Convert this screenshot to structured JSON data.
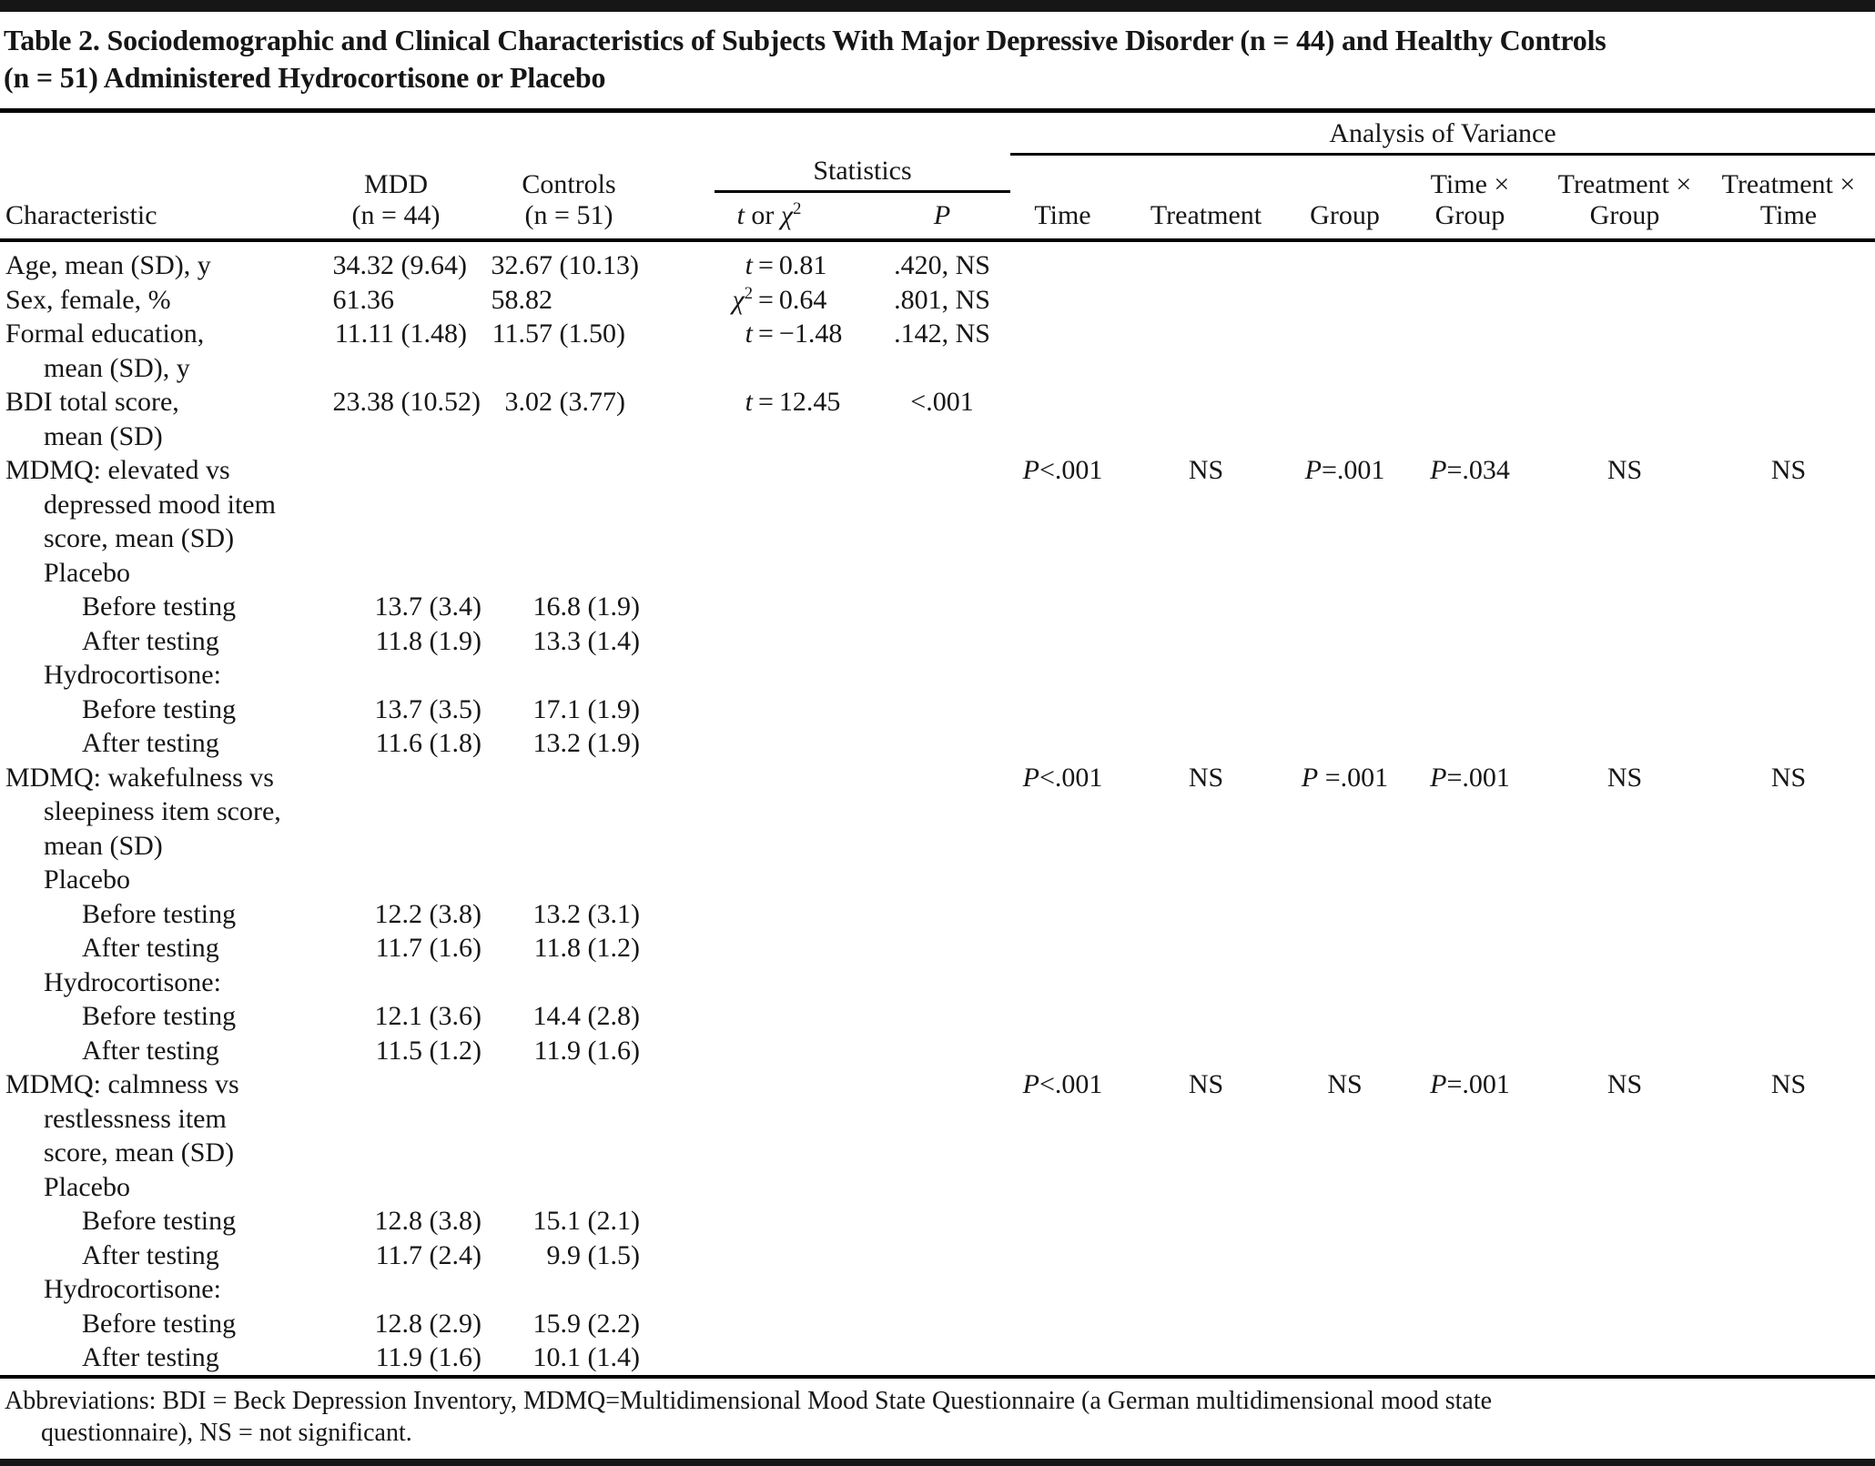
{
  "title": {
    "line1": "Table 2. Sociodemographic and Clinical Characteristics of Subjects With Major Depressive Disorder (n = 44) and Healthy Controls",
    "line2": "(n = 51) Administered  Hydrocortisone or Placebo"
  },
  "header": {
    "characteristic": "Characteristic",
    "mdd": {
      "line1": "MDD",
      "line2": "(n = 44)"
    },
    "controls": {
      "line1": "Controls",
      "line2": "(n = 51)"
    },
    "statistics_group": "Statistics",
    "anova_group": "Analysis of Variance",
    "stat_col": {
      "sym1": "t",
      "mid": " or ",
      "sym2": "χ",
      "sup": "2"
    },
    "p_col": "P",
    "anova_cols": [
      {
        "line1": "Time",
        "line2": ""
      },
      {
        "line1": "Treatment",
        "line2": ""
      },
      {
        "line1": "Group",
        "line2": ""
      },
      {
        "line1": "Time ×",
        "line2": "Group"
      },
      {
        "line1": "Treatment ×",
        "line2": "Group"
      },
      {
        "line1": "Treatment ×",
        "line2": "Time"
      }
    ]
  },
  "table": {
    "rows": [
      {
        "lines": [
          "Age, mean (SD), y"
        ],
        "indent": 0,
        "mdd": {
          "mean": "34.32",
          "sd": "(9.64)"
        },
        "controls": {
          "mean": "32.67",
          "sd": "(10.13)"
        },
        "stat": {
          "symbol": "t",
          "value": "0.81"
        },
        "p": ".420, NS",
        "anova": null
      },
      {
        "lines": [
          "Sex, female, %"
        ],
        "indent": 0,
        "mdd": {
          "mean": "61.36",
          "sd": ""
        },
        "controls": {
          "mean": "58.82",
          "sd": ""
        },
        "stat": {
          "symbol": "chi2",
          "value": "0.64"
        },
        "p": ".801, NS",
        "anova": null
      },
      {
        "lines": [
          "Formal education,",
          "mean (SD), y"
        ],
        "indent": 0,
        "mdd": {
          "mean": "11.11",
          "sd": "(1.48)"
        },
        "controls": {
          "mean": "11.57",
          "sd": "(1.50)"
        },
        "stat": {
          "symbol": "t",
          "value": "−1.48"
        },
        "p": ".142, NS",
        "anova": null
      },
      {
        "lines": [
          "BDI total score,",
          "mean (SD)"
        ],
        "indent": 0,
        "mdd": {
          "mean": "23.38",
          "sd": "(10.52)"
        },
        "controls": {
          "mean": "3.02",
          "sd": "(3.77)"
        },
        "stat": {
          "symbol": "t",
          "value": "12.45"
        },
        "p": "<.001",
        "anova": null
      },
      {
        "lines": [
          "MDMQ: elevated vs",
          "depressed mood item",
          "score, mean (SD)"
        ],
        "indent": 0,
        "mdd": null,
        "controls": null,
        "stat": null,
        "p": "",
        "anova": [
          "P<.001",
          "NS",
          "P=.001",
          "P=.034",
          "NS",
          "NS"
        ]
      },
      {
        "lines": [
          "Placebo"
        ],
        "indent": 1,
        "mdd": null,
        "controls": null,
        "stat": null,
        "p": "",
        "anova": null
      },
      {
        "lines": [
          "Before testing"
        ],
        "indent": 2,
        "mdd": {
          "mean": "13.7",
          "sd": "(3.4)"
        },
        "controls": {
          "mean": "16.8",
          "sd": "(1.9)"
        },
        "stat": null,
        "p": "",
        "anova": null
      },
      {
        "lines": [
          "After testing"
        ],
        "indent": 2,
        "mdd": {
          "mean": "11.8",
          "sd": "(1.9)"
        },
        "controls": {
          "mean": "13.3",
          "sd": "(1.4)"
        },
        "stat": null,
        "p": "",
        "anova": null
      },
      {
        "lines": [
          "Hydrocortisone:"
        ],
        "indent": 1,
        "mdd": null,
        "controls": null,
        "stat": null,
        "p": "",
        "anova": null
      },
      {
        "lines": [
          "Before testing"
        ],
        "indent": 2,
        "mdd": {
          "mean": "13.7",
          "sd": "(3.5)"
        },
        "controls": {
          "mean": "17.1",
          "sd": "(1.9)"
        },
        "stat": null,
        "p": "",
        "anova": null
      },
      {
        "lines": [
          "After testing"
        ],
        "indent": 2,
        "mdd": {
          "mean": "11.6",
          "sd": "(1.8)"
        },
        "controls": {
          "mean": "13.2",
          "sd": "(1.9)"
        },
        "stat": null,
        "p": "",
        "anova": null
      },
      {
        "lines": [
          "MDMQ: wakefulness vs",
          "sleepiness item score,",
          "mean (SD)"
        ],
        "indent": 0,
        "mdd": null,
        "controls": null,
        "stat": null,
        "p": "",
        "anova": [
          "P<.001",
          "NS",
          "P =.001",
          "P=.001",
          "NS",
          "NS"
        ]
      },
      {
        "lines": [
          "Placebo"
        ],
        "indent": 1,
        "mdd": null,
        "controls": null,
        "stat": null,
        "p": "",
        "anova": null
      },
      {
        "lines": [
          "Before testing"
        ],
        "indent": 2,
        "mdd": {
          "mean": "12.2",
          "sd": "(3.8)"
        },
        "controls": {
          "mean": "13.2",
          "sd": "(3.1)"
        },
        "stat": null,
        "p": "",
        "anova": null
      },
      {
        "lines": [
          "After testing"
        ],
        "indent": 2,
        "mdd": {
          "mean": "11.7",
          "sd": "(1.6)"
        },
        "controls": {
          "mean": "11.8",
          "sd": "(1.2)"
        },
        "stat": null,
        "p": "",
        "anova": null
      },
      {
        "lines": [
          "Hydrocortisone:"
        ],
        "indent": 1,
        "mdd": null,
        "controls": null,
        "stat": null,
        "p": "",
        "anova": null
      },
      {
        "lines": [
          "Before testing"
        ],
        "indent": 2,
        "mdd": {
          "mean": "12.1",
          "sd": "(3.6)"
        },
        "controls": {
          "mean": "14.4",
          "sd": "(2.8)"
        },
        "stat": null,
        "p": "",
        "anova": null
      },
      {
        "lines": [
          "After testing"
        ],
        "indent": 2,
        "mdd": {
          "mean": "11.5",
          "sd": "(1.2)"
        },
        "controls": {
          "mean": "11.9",
          "sd": "(1.6)"
        },
        "stat": null,
        "p": "",
        "anova": null
      },
      {
        "lines": [
          "MDMQ: calmness vs",
          "restlessness item",
          "score, mean (SD)"
        ],
        "indent": 0,
        "mdd": null,
        "controls": null,
        "stat": null,
        "p": "",
        "anova": [
          "P<.001",
          "NS",
          "NS",
          "P=.001",
          "NS",
          "NS"
        ]
      },
      {
        "lines": [
          "Placebo"
        ],
        "indent": 1,
        "mdd": null,
        "controls": null,
        "stat": null,
        "p": "",
        "anova": null
      },
      {
        "lines": [
          "Before testing"
        ],
        "indent": 2,
        "mdd": {
          "mean": "12.8",
          "sd": "(3.8)"
        },
        "controls": {
          "mean": "15.1",
          "sd": "(2.1)"
        },
        "stat": null,
        "p": "",
        "anova": null
      },
      {
        "lines": [
          "After testing"
        ],
        "indent": 2,
        "mdd": {
          "mean": "11.7",
          "sd": "(2.4)"
        },
        "controls": {
          "mean": "9.9",
          "sd": "(1.5)"
        },
        "stat": null,
        "p": "",
        "anova": null
      },
      {
        "lines": [
          "Hydrocortisone:"
        ],
        "indent": 1,
        "mdd": null,
        "controls": null,
        "stat": null,
        "p": "",
        "anova": null
      },
      {
        "lines": [
          "Before testing"
        ],
        "indent": 2,
        "mdd": {
          "mean": "12.8",
          "sd": "(2.9)"
        },
        "controls": {
          "mean": "15.9",
          "sd": "(2.2)"
        },
        "stat": null,
        "p": "",
        "anova": null
      },
      {
        "lines": [
          "After testing"
        ],
        "indent": 2,
        "mdd": {
          "mean": "11.9",
          "sd": "(1.6)"
        },
        "controls": {
          "mean": "10.1",
          "sd": "(1.4)"
        },
        "stat": null,
        "p": "",
        "anova": null
      }
    ]
  },
  "footnote": {
    "line1": "Abbreviations: BDI = Beck Depression Inventory, MDMQ=Multidimensional Mood State Questionnaire (a German multidimensional mood state",
    "line2": "questionnaire), NS = not significant."
  },
  "colors": {
    "text": "#161616",
    "rule": "#000000",
    "background": "#ffffff"
  }
}
